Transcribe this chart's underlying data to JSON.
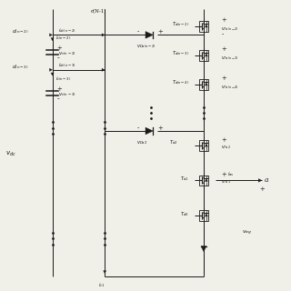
{
  "background_color": "#f0efe8",
  "line_color": "#1a1a1a",
  "text_color": "#1a1a1a",
  "figsize": [
    3.2,
    3.2
  ],
  "dpi": 100
}
